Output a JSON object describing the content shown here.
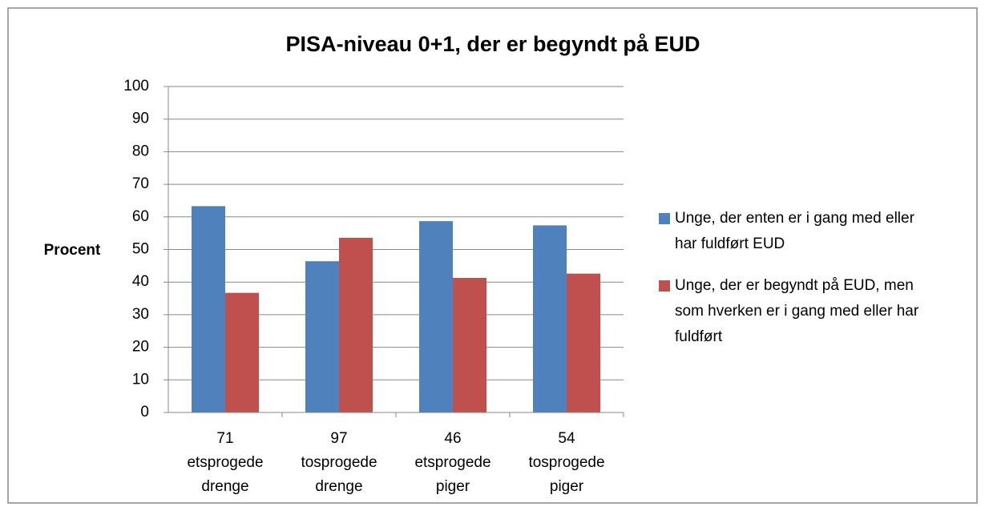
{
  "chart_data": {
    "type": "bar",
    "title": "PISA-niveau 0+1, der er begyndt på EUD",
    "ylabel": "Procent",
    "categories": [
      [
        "71",
        "etsprogede",
        "drenge"
      ],
      [
        "97",
        "tosprogede",
        "drenge"
      ],
      [
        "46",
        "etsprogede",
        "piger"
      ],
      [
        "54",
        "tosprogede",
        "piger"
      ]
    ],
    "series": [
      {
        "name": "Unge, der enten er i gang med eller har fuldført EUD",
        "color": "#4f81bd",
        "values": [
          63.3,
          46.4,
          58.7,
          57.4
        ]
      },
      {
        "name": "Unge, der er begyndt på EUD, men som hverken er i gang med eller har fuldført",
        "color": "#c0504d",
        "values": [
          36.7,
          53.6,
          41.3,
          42.6
        ]
      }
    ],
    "ylim": [
      0,
      100
    ],
    "yticks": [
      0,
      10,
      20,
      30,
      40,
      50,
      60,
      70,
      80,
      90,
      100
    ],
    "grid": true,
    "legend": "right"
  }
}
